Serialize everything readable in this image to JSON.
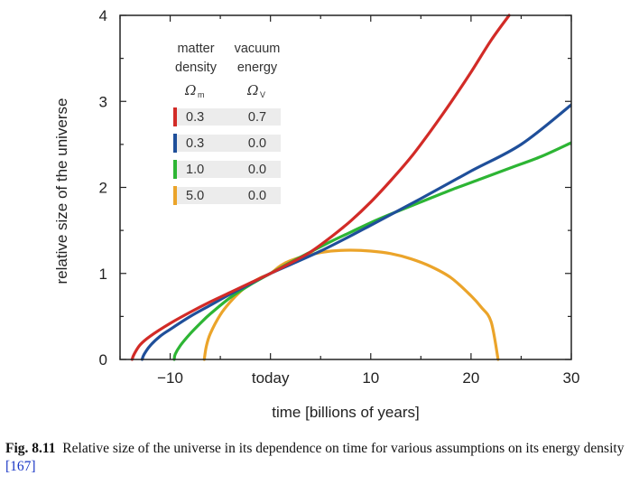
{
  "chart_data": {
    "type": "line",
    "xlabel": "time [billions of years]",
    "ylabel": "relative size of the universe",
    "xlim": [
      -15,
      30
    ],
    "ylim": [
      0,
      4
    ],
    "x_ticks": [
      {
        "value": -10,
        "label": "−10"
      },
      {
        "value": 0,
        "label": "today"
      },
      {
        "value": 10,
        "label": "10"
      },
      {
        "value": 20,
        "label": "20"
      },
      {
        "value": 30,
        "label": "30"
      }
    ],
    "y_ticks": [
      {
        "value": 0,
        "label": "0"
      },
      {
        "value": 1,
        "label": "1"
      },
      {
        "value": 2,
        "label": "2"
      },
      {
        "value": 3,
        "label": "3"
      },
      {
        "value": 4,
        "label": "4"
      }
    ],
    "legend": {
      "header_matter_line1": "matter",
      "header_matter_line2": "density",
      "header_vacuum_line1": "vacuum",
      "header_vacuum_line2": "energy",
      "symbol_matter": "Ω",
      "symbol_matter_sub": "m",
      "symbol_vacuum": "Ω",
      "symbol_vacuum_sub": "V"
    },
    "series": [
      {
        "name": "0.3 / 0.7",
        "omega_m": "0.3",
        "omega_v": "0.7",
        "color": "#d22b27",
        "points": [
          [
            -13.8,
            0
          ],
          [
            -13.6,
            0.06
          ],
          [
            -13,
            0.17
          ],
          [
            -12,
            0.27
          ],
          [
            -10,
            0.42
          ],
          [
            -8,
            0.55
          ],
          [
            -6,
            0.67
          ],
          [
            -4,
            0.78
          ],
          [
            -2,
            0.89
          ],
          [
            0,
            1.0
          ],
          [
            2,
            1.12
          ],
          [
            4,
            1.25
          ],
          [
            6,
            1.42
          ],
          [
            8,
            1.61
          ],
          [
            10,
            1.83
          ],
          [
            12,
            2.08
          ],
          [
            14,
            2.35
          ],
          [
            16,
            2.66
          ],
          [
            18,
            2.99
          ],
          [
            20,
            3.34
          ],
          [
            22,
            3.71
          ],
          [
            23.8,
            4.0
          ]
        ]
      },
      {
        "name": "0.3 / 0.0",
        "omega_m": "0.3",
        "omega_v": "0.0",
        "color": "#1f4f9a",
        "points": [
          [
            -12.8,
            0
          ],
          [
            -12.6,
            0.06
          ],
          [
            -12,
            0.16
          ],
          [
            -11,
            0.27
          ],
          [
            -10,
            0.35
          ],
          [
            -8,
            0.5
          ],
          [
            -6,
            0.63
          ],
          [
            -4,
            0.76
          ],
          [
            -2,
            0.88
          ],
          [
            0,
            1.0
          ],
          [
            5,
            1.26
          ],
          [
            10,
            1.56
          ],
          [
            15,
            1.87
          ],
          [
            20,
            2.19
          ],
          [
            25,
            2.5
          ],
          [
            30,
            2.96
          ]
        ]
      },
      {
        "name": "1.0 / 0.0",
        "omega_m": "1.0",
        "omega_v": "0.0",
        "color": "#2db534",
        "points": [
          [
            -9.6,
            0
          ],
          [
            -9.5,
            0.06
          ],
          [
            -9,
            0.16
          ],
          [
            -8,
            0.3
          ],
          [
            -7,
            0.42
          ],
          [
            -6,
            0.53
          ],
          [
            -4,
            0.72
          ],
          [
            -2,
            0.87
          ],
          [
            0,
            1.0
          ],
          [
            2,
            1.13
          ],
          [
            4,
            1.25
          ],
          [
            6,
            1.37
          ],
          [
            8,
            1.48
          ],
          [
            10,
            1.59
          ],
          [
            12,
            1.69
          ],
          [
            15,
            1.83
          ],
          [
            18,
            1.97
          ],
          [
            21,
            2.1
          ],
          [
            24,
            2.23
          ],
          [
            27,
            2.36
          ],
          [
            30,
            2.52
          ]
        ]
      },
      {
        "name": "5.0 / 0.0",
        "omega_m": "5.0",
        "omega_v": "0.0",
        "color": "#eba42a",
        "points": [
          [
            -6.6,
            0
          ],
          [
            -6.4,
            0.15
          ],
          [
            -6,
            0.3
          ],
          [
            -5,
            0.52
          ],
          [
            -4,
            0.67
          ],
          [
            -3,
            0.79
          ],
          [
            -2,
            0.88
          ],
          [
            -1,
            0.95
          ],
          [
            0,
            1.0
          ],
          [
            1,
            1.09
          ],
          [
            2,
            1.15
          ],
          [
            4,
            1.22
          ],
          [
            6,
            1.26
          ],
          [
            8,
            1.27
          ],
          [
            10,
            1.26
          ],
          [
            12,
            1.23
          ],
          [
            14,
            1.17
          ],
          [
            16,
            1.08
          ],
          [
            18,
            0.95
          ],
          [
            20,
            0.74
          ],
          [
            21,
            0.61
          ],
          [
            22,
            0.44
          ],
          [
            22.7,
            0.0
          ]
        ]
      }
    ]
  },
  "caption": {
    "label": "Fig. 8.11",
    "text": "Relative size of the universe in its dependence on time for various assumptions on its energy density",
    "reference": "[167]"
  }
}
